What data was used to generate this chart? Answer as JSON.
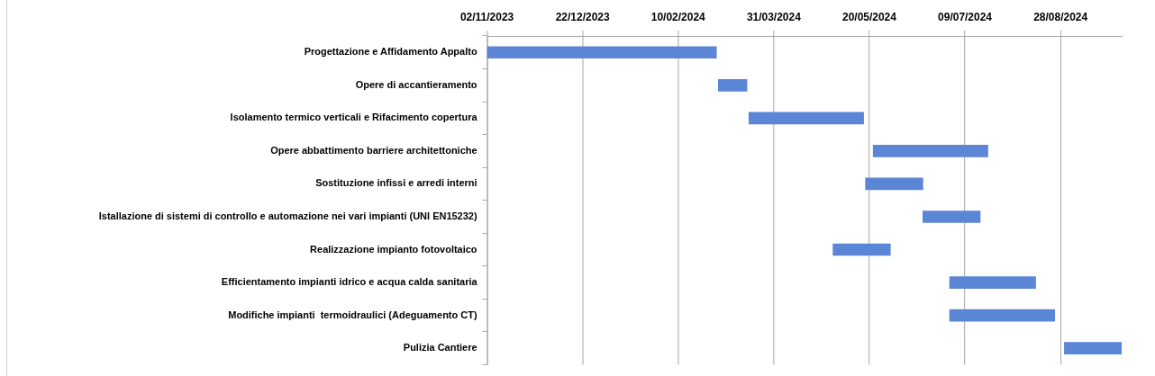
{
  "chart_data": {
    "type": "bar",
    "orientation": "horizontal",
    "categories": [
      "Progettazione e Affidamento Appalto",
      "Opere di accantieramento",
      "Isolamento termico verticali e Rifacimento copertura",
      "Opere abbattimento barriere architettoniche",
      "Sostituzione infissi e arredi interni",
      "Istallazione di sistemi di controllo e automazione nei vari impianti (UNI EN15232)",
      "Realizzazione impianto fotovoltaico",
      "Efficientamento impianti idrico e acqua calda sanitaria",
      "Modifiche impianti  termoidraulici (Adeguamento CT)",
      "Pulizia Cantiere"
    ],
    "base": [
      19663,
      19784,
      19800,
      19865,
      19861,
      19891,
      19844,
      19905,
      19905,
      19965
    ],
    "values": [
      120,
      15,
      60,
      60,
      30,
      30,
      30,
      45,
      55,
      30
    ],
    "color": "#5a86d5",
    "xlim": [
      "2023-11-02",
      "2024-09-29"
    ],
    "xticks": [
      {
        "value": "2023-11-02",
        "label": "02/11/2023"
      },
      {
        "value": "2023-12-22",
        "label": "22/12/2023"
      },
      {
        "value": "2024-02-10",
        "label": "10/02/2024"
      },
      {
        "value": "2024-03-31",
        "label": "31/03/2024"
      },
      {
        "value": "2024-05-20",
        "label": "20/05/2024"
      },
      {
        "value": "2024-07-09",
        "label": "09/07/2024"
      },
      {
        "value": "2024-08-28",
        "label": "28/08/2024"
      }
    ],
    "grid": "x"
  }
}
